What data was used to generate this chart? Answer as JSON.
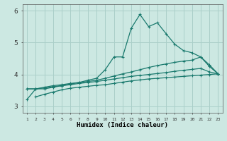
{
  "xlabel": "Humidex (Indice chaleur)",
  "x_values": [
    1,
    2,
    3,
    4,
    5,
    6,
    7,
    8,
    9,
    10,
    11,
    12,
    13,
    14,
    15,
    16,
    17,
    18,
    19,
    20,
    21,
    22,
    23
  ],
  "line1_y": [
    3.22,
    3.55,
    3.55,
    3.6,
    3.65,
    3.7,
    3.75,
    3.82,
    3.88,
    4.15,
    4.55,
    4.55,
    5.45,
    5.88,
    5.5,
    5.62,
    5.28,
    4.95,
    4.75,
    4.68,
    4.55,
    4.3,
    4.02
  ],
  "line2_y": [
    3.55,
    3.55,
    3.6,
    3.65,
    3.68,
    3.72,
    3.75,
    3.78,
    3.82,
    3.88,
    3.95,
    4.02,
    4.08,
    4.15,
    4.22,
    4.28,
    4.33,
    4.38,
    4.42,
    4.45,
    4.55,
    4.25,
    4.02
  ],
  "line3_y": [
    3.55,
    3.55,
    3.58,
    3.62,
    3.65,
    3.68,
    3.72,
    3.75,
    3.78,
    3.82,
    3.86,
    3.9,
    3.94,
    3.97,
    4.0,
    4.03,
    4.06,
    4.1,
    4.13,
    4.16,
    4.19,
    4.08,
    4.02
  ],
  "line4_y": [
    3.22,
    3.3,
    3.38,
    3.45,
    3.52,
    3.57,
    3.6,
    3.63,
    3.66,
    3.68,
    3.72,
    3.76,
    3.8,
    3.83,
    3.86,
    3.88,
    3.9,
    3.92,
    3.94,
    3.96,
    3.98,
    4.0,
    4.02
  ],
  "line_color": "#1a7a6e",
  "bg_color": "#cce8e2",
  "grid_color": "#aacfc9",
  "ylim": [
    2.8,
    6.2
  ],
  "xlim": [
    0.5,
    23.5
  ],
  "yticks": [
    3,
    4,
    5,
    6
  ],
  "xticks": [
    1,
    2,
    3,
    4,
    5,
    6,
    7,
    8,
    9,
    10,
    11,
    12,
    13,
    14,
    15,
    16,
    17,
    18,
    19,
    20,
    21,
    22,
    23
  ]
}
